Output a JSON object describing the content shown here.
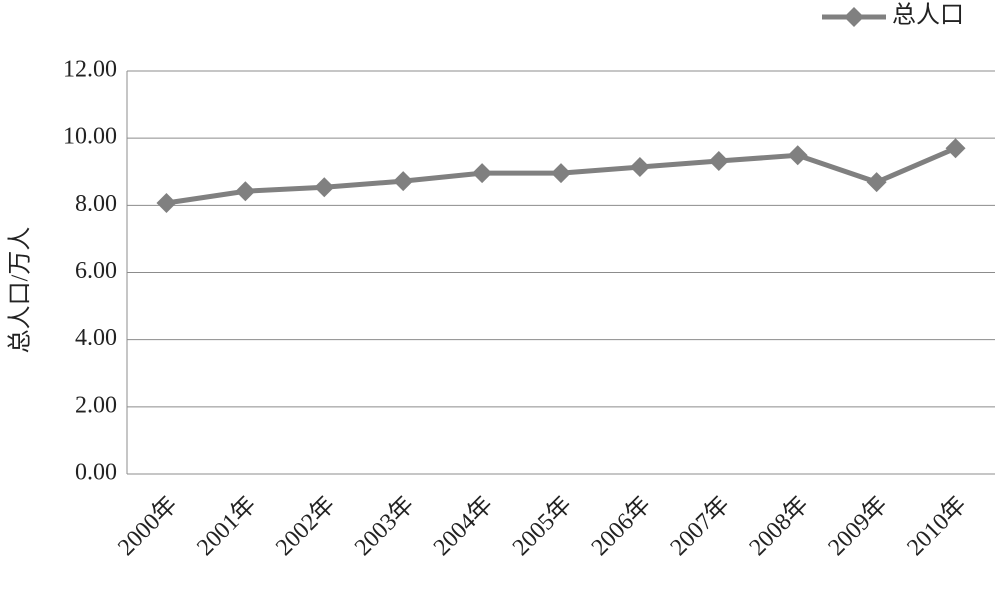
{
  "chart_data": {
    "type": "line",
    "ylabel": "总人口/万人",
    "categories": [
      "2000年",
      "2001年",
      "2002年",
      "2003年",
      "2004年",
      "2005年",
      "2006年",
      "2007年",
      "2008年",
      "2009年",
      "2010年"
    ],
    "series": [
      {
        "name": "总人口",
        "color": "#808080",
        "values": [
          8.07,
          8.42,
          8.54,
          8.72,
          8.96,
          8.96,
          9.14,
          9.32,
          9.49,
          8.69,
          9.7
        ]
      }
    ],
    "ylim": [
      0,
      12
    ],
    "yticks": [
      {
        "value": 0,
        "label": "0.00"
      },
      {
        "value": 2,
        "label": "2.00"
      },
      {
        "value": 4,
        "label": "4.00"
      },
      {
        "value": 6,
        "label": "6.00"
      },
      {
        "value": 8,
        "label": "8.00"
      },
      {
        "value": 10,
        "label": "10.00"
      },
      {
        "value": 12,
        "label": "12.00"
      }
    ],
    "grid": true,
    "legend": "top-right"
  }
}
